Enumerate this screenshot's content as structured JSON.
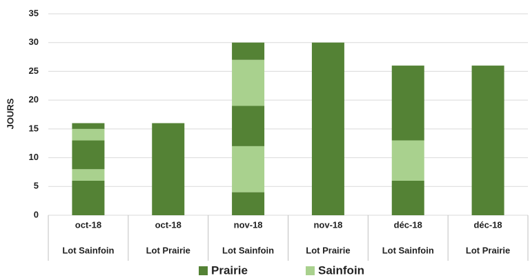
{
  "chart_data": {
    "type": "stacked_bar",
    "y_label": "JOURS",
    "categories": [
      [
        "oct-18",
        "Lot Sainfoin"
      ],
      [
        "oct-18",
        "Lot  Prairie"
      ],
      [
        "nov-18",
        "Lot Sainfoin"
      ],
      [
        "nov-18",
        "Lot  Prairie"
      ],
      [
        "déc-18",
        "Lot Sainfoin"
      ],
      [
        "déc-18",
        "Lot  Prairie"
      ]
    ],
    "series": [
      {
        "name": "Prairie",
        "color": "#548235",
        "values": [
          [
            6,
            5,
            1
          ],
          [
            16
          ],
          [
            4,
            7,
            3
          ],
          [
            30
          ],
          [
            6,
            13
          ],
          [
            26
          ]
        ]
      },
      {
        "name": "Sainfoin",
        "color": "#a9d18e",
        "values": [
          [
            2,
            2
          ],
          [],
          [
            8,
            8
          ],
          [],
          [
            7
          ],
          []
        ]
      }
    ],
    "ylim": [
      0,
      35
    ],
    "yticks": [
      0,
      5,
      10,
      15,
      20,
      25,
      30,
      35
    ],
    "grid": true,
    "legend": "bottom"
  }
}
